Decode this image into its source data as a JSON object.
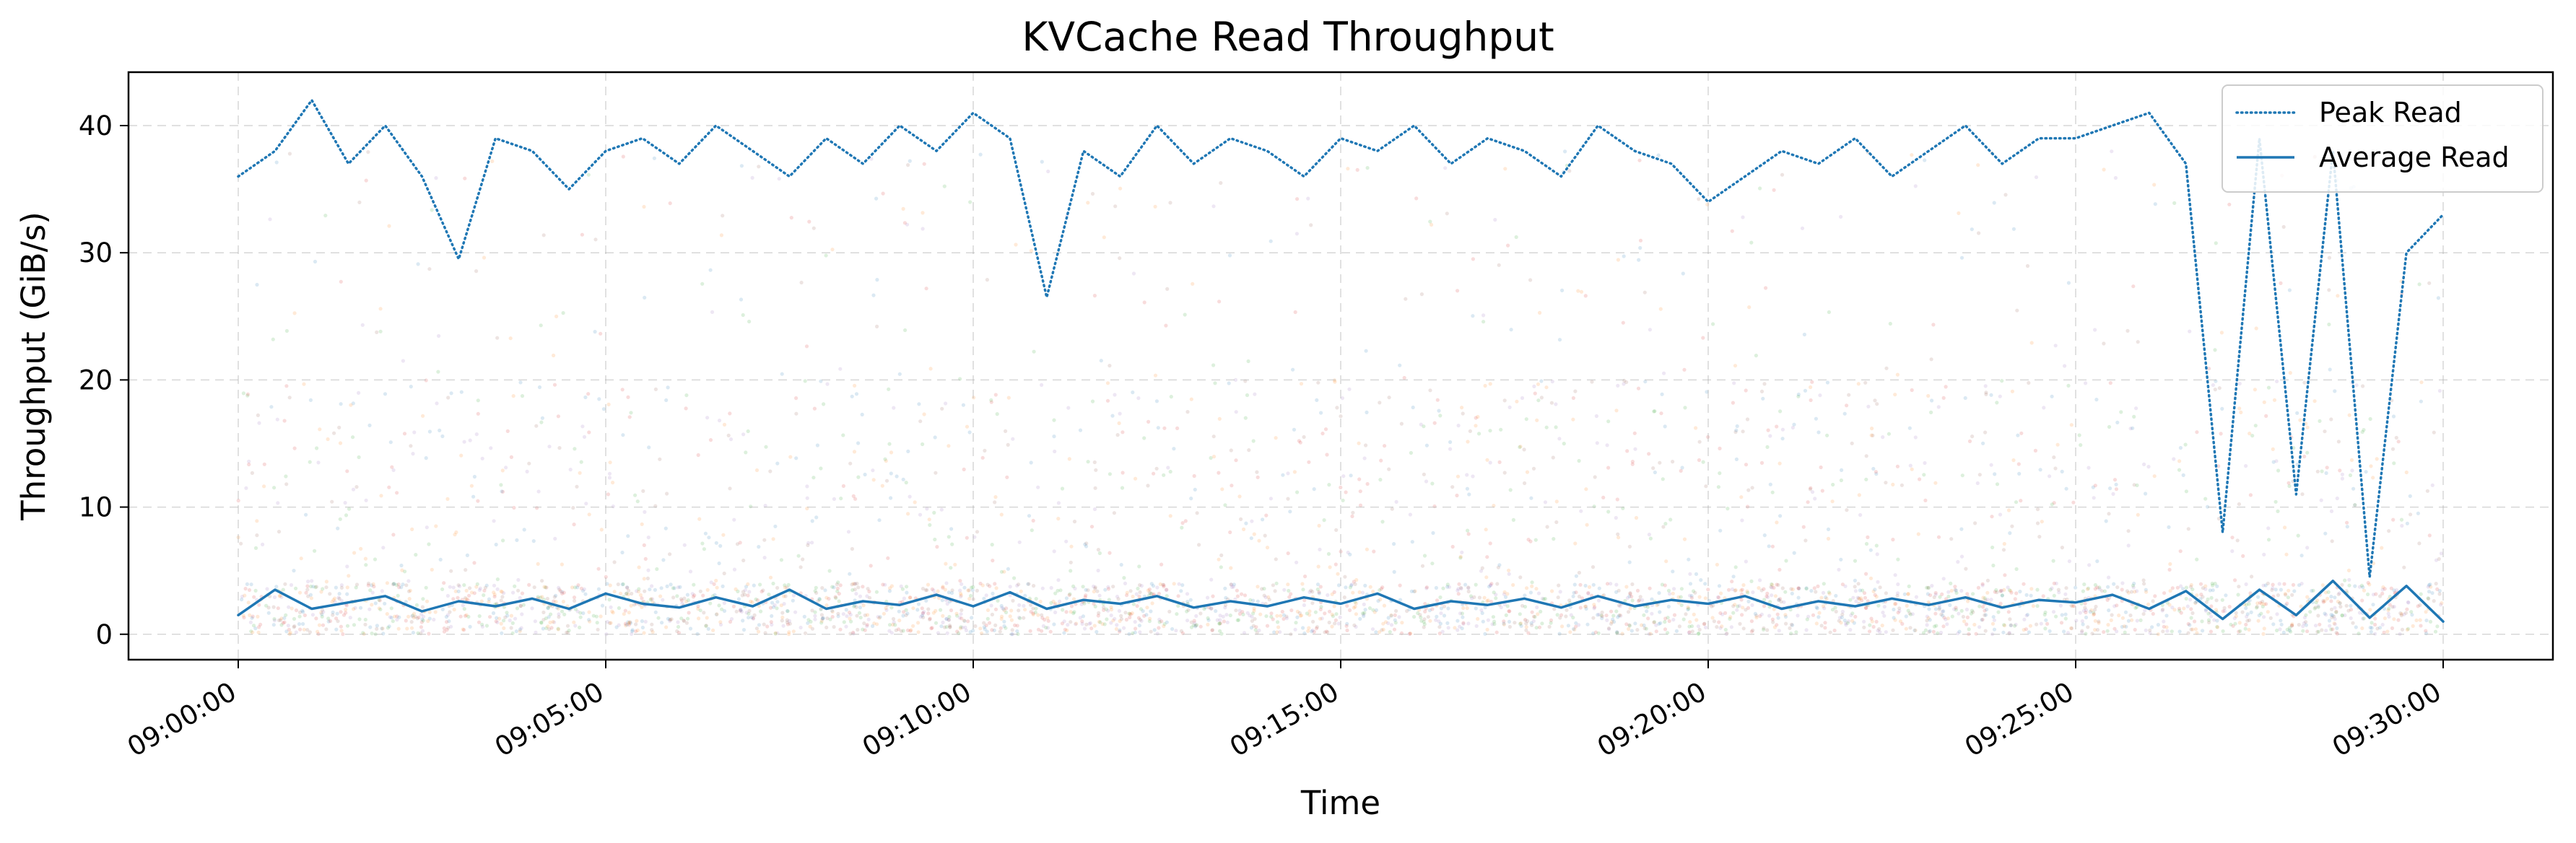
{
  "chart_data": {
    "type": "line",
    "title": "KVCache Read Throughput",
    "xlabel": "Time",
    "ylabel": "Throughput (GiB/s)",
    "x_ticks": [
      "09:00:00",
      "09:05:00",
      "09:10:00",
      "09:15:00",
      "09:20:00",
      "09:25:00",
      "09:30:00"
    ],
    "x_range_seconds": [
      0,
      1800
    ],
    "y_ticks": [
      0,
      10,
      20,
      30,
      40
    ],
    "ylim": [
      -2,
      44.2
    ],
    "grid": true,
    "legend_position": "top-right",
    "series": [
      {
        "name": "Peak Read",
        "style": "dotted",
        "color": "#1f77b4",
        "x_seconds": [
          0,
          30,
          60,
          90,
          120,
          150,
          180,
          210,
          240,
          270,
          300,
          330,
          360,
          390,
          420,
          450,
          480,
          510,
          540,
          570,
          600,
          630,
          660,
          690,
          720,
          750,
          780,
          810,
          840,
          870,
          900,
          930,
          960,
          990,
          1020,
          1050,
          1080,
          1110,
          1140,
          1170,
          1200,
          1230,
          1260,
          1290,
          1320,
          1350,
          1380,
          1410,
          1440,
          1470,
          1500,
          1530,
          1560,
          1590,
          1620,
          1650,
          1680,
          1710,
          1740,
          1770,
          1800
        ],
        "values": [
          36,
          38,
          42,
          37,
          40,
          36,
          29.5,
          39,
          38,
          35,
          38,
          39,
          37,
          40,
          38,
          36,
          39,
          37,
          40,
          38,
          41,
          39,
          26.5,
          38,
          36,
          40,
          37,
          39,
          38,
          36,
          39,
          38,
          40,
          37,
          39,
          38,
          36,
          40,
          38,
          37,
          34,
          36,
          38,
          37,
          39,
          36,
          38,
          40,
          37,
          39,
          39,
          40,
          41,
          37,
          8,
          39,
          11,
          38,
          4.5,
          30,
          33
        ]
      },
      {
        "name": "Average Read",
        "style": "solid",
        "color": "#1f77b4",
        "x_seconds": [
          0,
          30,
          60,
          90,
          120,
          150,
          180,
          210,
          240,
          270,
          300,
          330,
          360,
          390,
          420,
          450,
          480,
          510,
          540,
          570,
          600,
          630,
          660,
          690,
          720,
          750,
          780,
          810,
          840,
          870,
          900,
          930,
          960,
          990,
          1020,
          1050,
          1080,
          1110,
          1140,
          1170,
          1200,
          1230,
          1260,
          1290,
          1320,
          1350,
          1380,
          1410,
          1440,
          1470,
          1500,
          1530,
          1560,
          1590,
          1620,
          1650,
          1680,
          1710,
          1740,
          1770,
          1800
        ],
        "values": [
          1.5,
          3.5,
          2,
          2.5,
          3,
          1.8,
          2.6,
          2.2,
          2.8,
          2,
          3.2,
          2.4,
          2.1,
          2.9,
          2.2,
          3.5,
          2,
          2.6,
          2.3,
          3.1,
          2.2,
          3.3,
          2,
          2.7,
          2.4,
          3,
          2.1,
          2.6,
          2.2,
          2.9,
          2.4,
          3.2,
          2,
          2.6,
          2.3,
          2.8,
          2.1,
          3,
          2.2,
          2.7,
          2.4,
          3,
          2,
          2.6,
          2.2,
          2.8,
          2.3,
          2.9,
          2.1,
          2.7,
          2.5,
          3.1,
          2,
          3.4,
          1.2,
          3.5,
          1.5,
          4.2,
          1.3,
          3.8,
          1
        ]
      }
    ]
  }
}
